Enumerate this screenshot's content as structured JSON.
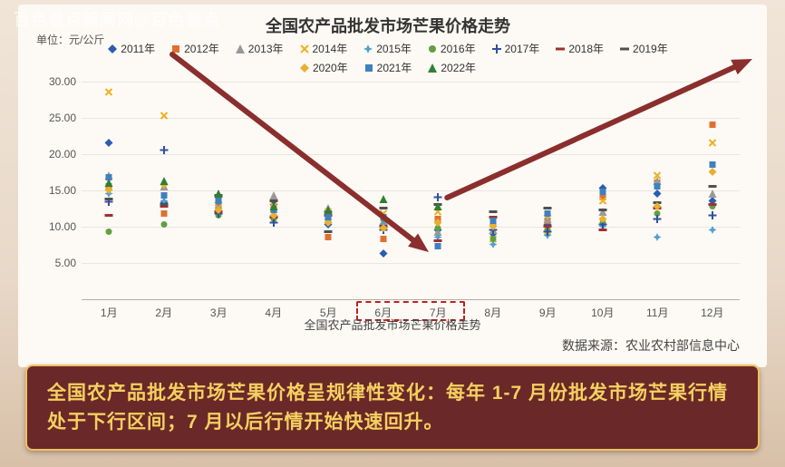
{
  "watermark": "百色看点新闻网@百色看点",
  "chart": {
    "title": "全国农产品批发市场芒果价格走势",
    "unit_label": "单位：元/公斤",
    "type": "scatter",
    "background_color": "#fdfaf5",
    "page_bg_from": "#f0e5d8",
    "page_bg_to": "#d8c0a8",
    "xaxis_title": "全国农产品批发市场芒果价格走势",
    "source": "数据来源：农业农村部信息中心",
    "y": {
      "min": 0,
      "max": 30,
      "ticks": [
        5,
        10,
        15,
        20,
        25,
        30
      ],
      "tick_labels": [
        "5.00",
        "10.00",
        "15.00",
        "20.00",
        "25.00",
        "30.00"
      ]
    },
    "x": {
      "categories": [
        "1月",
        "2月",
        "3月",
        "4月",
        "5月",
        "6月",
        "7月",
        "8月",
        "9月",
        "10月",
        "11月",
        "12月"
      ]
    },
    "grid_color": "rgba(0,0,0,0.08)",
    "highlight_box": {
      "x_from": 5,
      "x_to": 6,
      "y_from": 0.5,
      "y_to": 3.5,
      "border_color": "#c02020"
    },
    "arrows": {
      "color": "#8b2e2e"
    },
    "series": [
      {
        "name": "2011年",
        "label": "2011年",
        "color": "#2a5db0",
        "marker": "diamond",
        "values": [
          21.5,
          13.2,
          14.0,
          13.0,
          10.3,
          6.2,
          9.5,
          9.0,
          10.2,
          15.2,
          14.5,
          13.5
        ]
      },
      {
        "name": "2012年",
        "label": "2012年",
        "color": "#e07030",
        "marker": "square",
        "values": [
          15.5,
          11.8,
          13.0,
          12.5,
          8.5,
          8.3,
          11.0,
          10.5,
          10.8,
          14.0,
          16.0,
          24.0
        ]
      },
      {
        "name": "2013年",
        "label": "2013年",
        "color": "#999999",
        "marker": "triangle",
        "values": [
          17.0,
          15.5,
          13.8,
          14.2,
          12.5,
          10.8,
          9.2,
          9.5,
          11.0,
          12.0,
          16.2,
          14.5
        ]
      },
      {
        "name": "2014年",
        "label": "2014年",
        "color": "#f0b020",
        "marker": "x",
        "values": [
          28.5,
          25.2,
          12.5,
          12.8,
          12.0,
          11.8,
          12.0,
          8.2,
          9.2,
          13.5,
          17.0,
          21.5
        ]
      },
      {
        "name": "2015年",
        "label": "2015年",
        "color": "#50a0d0",
        "marker": "star",
        "values": [
          14.5,
          13.5,
          12.5,
          12.0,
          11.0,
          10.2,
          8.5,
          7.5,
          8.8,
          10.0,
          8.5,
          9.5
        ]
      },
      {
        "name": "2016年",
        "label": "2016年",
        "color": "#60a040",
        "marker": "circle",
        "values": [
          9.2,
          10.2,
          11.5,
          11.0,
          10.8,
          11.0,
          9.8,
          8.2,
          9.5,
          10.5,
          11.8,
          12.8
        ]
      },
      {
        "name": "2017年",
        "label": "2017年",
        "color": "#3050a0",
        "marker": "plus",
        "values": [
          13.4,
          20.5,
          11.8,
          10.5,
          12.0,
          9.5,
          14.0,
          9.5,
          9.2,
          10.2,
          11.0,
          11.5
        ]
      },
      {
        "name": "2018年",
        "label": "2018年",
        "color": "#a03030",
        "marker": "dash",
        "values": [
          11.5,
          12.8,
          12.0,
          11.2,
          11.5,
          10.0,
          8.0,
          11.2,
          10.0,
          9.5,
          12.5,
          13.0
        ]
      },
      {
        "name": "2019年",
        "label": "2019年",
        "color": "#505050",
        "marker": "dash",
        "values": [
          13.8,
          13.0,
          14.2,
          13.5,
          9.2,
          12.5,
          13.0,
          12.0,
          12.5,
          12.2,
          13.2,
          15.5
        ]
      },
      {
        "name": "2020年",
        "label": "2020年",
        "color": "#e8b030",
        "marker": "diamond",
        "values": [
          15.0,
          15.8,
          12.2,
          11.5,
          10.5,
          9.8,
          10.5,
          10.0,
          11.5,
          11.0,
          12.8,
          17.5
        ]
      },
      {
        "name": "2021年",
        "label": "2021年",
        "color": "#4080c0",
        "marker": "square",
        "values": [
          16.8,
          14.2,
          13.5,
          12.2,
          11.2,
          11.2,
          7.2,
          10.8,
          11.8,
          14.8,
          15.5,
          18.5
        ]
      },
      {
        "name": "2022年",
        "label": "2022年",
        "color": "#308030",
        "marker": "triangle",
        "values": [
          16.0,
          16.2,
          14.5,
          12.8,
          12.2,
          13.8,
          12.8,
          null,
          null,
          null,
          null,
          null
        ]
      }
    ]
  },
  "conclusion": "全国农产品批发市场芒果价格呈规律性变化：每年 1-7 月份批发市场芒果行情处于下行区间；7 月以后行情开始快速回升。",
  "style": {
    "title_fontsize": 18,
    "label_fontsize": 12,
    "conclusion_fontsize": 21,
    "conclusion_bg": "#6a2828",
    "conclusion_border": "#f0c060",
    "conclusion_color": "#f5d060"
  }
}
